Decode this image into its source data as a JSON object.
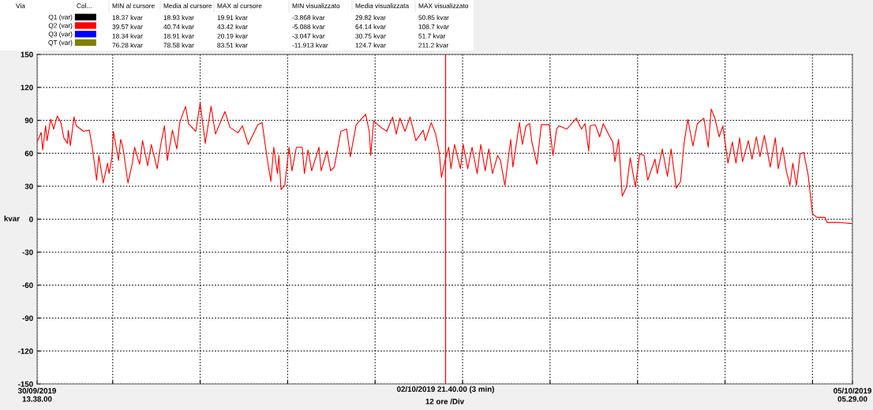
{
  "chart_data": {
    "type": "line",
    "xlabel": "12 ore /Div",
    "ylabel": "kvar",
    "annotations": [
      "Via",
      "Col...",
      "MIN al cursore",
      "Media al cursore",
      "MAX al cursore",
      "MIN visualizzato",
      "Media visualizzata",
      "MAX visualizzato",
      "18.37 kvar",
      "18.93 kvar",
      "19.91 kvar",
      "-3.868 kvar",
      "29.82 kvar",
      "50.85 kvar",
      "39.57 kvar",
      "40.74 kvar",
      "43.42 kvar",
      "-5.088 kvar",
      "64.14 kvar",
      "108.7 kvar",
      "18.34 kvar",
      "18.91 kvar",
      "20.19 kvar",
      "-3.047 kvar",
      "30.75 kvar",
      "51.7 kvar",
      "76.28 kvar",
      "78.58 kvar",
      "83.51 kvar",
      "-11.913 kvar",
      "124.7 kvar",
      "211.2 kvar"
    ],
    "legend": "top",
    "grid": true,
    "line_style": "solid",
    "marker": "none",
    "xlim": [
      "2019-09-30T13:38",
      "2019-10-05T05:29"
    ],
    "ylim": [
      -150,
      150
    ],
    "xticks": [
      {
        "value": "2019-09-30T13:38",
        "label": "30/09/2019\n13.38.00"
      },
      {
        "value": "2019-10-01T00:00",
        "label": null
      },
      {
        "value": "2019-10-01T12:00",
        "label": null
      },
      {
        "value": "2019-10-02T00:00",
        "label": null
      },
      {
        "value": "2019-10-02T12:00",
        "label": null
      },
      {
        "value": "2019-10-03T00:00",
        "label": null
      },
      {
        "value": "2019-10-03T12:00",
        "label": null
      },
      {
        "value": "2019-10-04T00:00",
        "label": null
      },
      {
        "value": "2019-10-04T12:00",
        "label": null
      },
      {
        "value": "2019-10-05T00:00",
        "label": null
      },
      {
        "value": "2019-10-05T05:29",
        "label": "05/10/2019\n05.29.00"
      }
    ],
    "yticks": [
      -150,
      -120,
      -90,
      -60,
      -30,
      0,
      30,
      60,
      90,
      120,
      150
    ],
    "ref_lines": [
      {
        "axis": "x",
        "value": "2019-10-02T21:40",
        "label": "02/10/2019 21.40.00 (3 min)",
        "color": "#ff0000"
      }
    ],
    "series": [
      {
        "name": "Q1 (var)",
        "color": "#000000"
      },
      {
        "name": "Q2 (var)",
        "color": "#ff0000",
        "x": [
          "2019-09-30T13:38",
          "2019-09-30T14:12",
          "2019-09-30T14:24",
          "2019-09-30T14:48",
          "2019-09-30T15:00",
          "2019-09-30T15:30",
          "2019-09-30T15:54",
          "2019-09-30T16:24",
          "2019-09-30T16:54",
          "2019-09-30T17:18",
          "2019-09-30T17:48",
          "2019-09-30T17:54",
          "2019-09-30T18:12",
          "2019-09-30T18:42",
          "2019-09-30T19:00",
          "2019-09-30T20:00",
          "2019-09-30T20:48",
          "2019-09-30T21:12",
          "2019-09-30T21:48",
          "2019-09-30T22:06",
          "2019-09-30T22:42",
          "2019-09-30T23:18",
          "2019-09-30T23:30",
          "2019-09-30T23:54",
          "2019-10-01T00:06",
          "2019-10-01T00:48",
          "2019-10-01T01:06",
          "2019-10-01T01:24",
          "2019-10-01T02:06",
          "2019-10-01T02:42",
          "2019-10-01T03:00",
          "2019-10-01T03:42",
          "2019-10-01T04:06",
          "2019-10-01T04:48",
          "2019-10-01T05:18",
          "2019-10-01T06:06",
          "2019-10-01T06:36",
          "2019-10-01T07:06",
          "2019-10-01T07:30",
          "2019-10-01T08:12",
          "2019-10-01T08:48",
          "2019-10-01T09:12",
          "2019-10-01T10:00",
          "2019-10-01T10:24",
          "2019-10-01T11:24",
          "2019-10-01T12:00",
          "2019-10-01T12:42",
          "2019-10-01T13:30",
          "2019-10-01T14:06",
          "2019-10-01T15:24",
          "2019-10-01T16:06",
          "2019-10-01T17:12",
          "2019-10-01T17:48",
          "2019-10-01T18:36",
          "2019-10-01T19:54",
          "2019-10-01T20:30",
          "2019-10-01T21:12",
          "2019-10-01T21:42",
          "2019-10-01T22:06",
          "2019-10-01T22:36",
          "2019-10-01T22:48",
          "2019-10-01T23:06",
          "2019-10-01T23:36",
          "2019-10-02T00:12",
          "2019-10-02T00:36",
          "2019-10-02T01:12",
          "2019-10-02T02:00",
          "2019-10-02T02:18",
          "2019-10-02T02:48",
          "2019-10-02T03:18",
          "2019-10-02T04:18",
          "2019-10-02T04:36",
          "2019-10-02T05:24",
          "2019-10-02T05:54",
          "2019-10-02T06:24",
          "2019-10-02T07:18",
          "2019-10-02T08:06",
          "2019-10-02T08:36",
          "2019-10-02T09:24",
          "2019-10-02T10:42",
          "2019-10-02T11:12",
          "2019-10-02T11:24",
          "2019-10-02T11:48",
          "2019-10-02T12:48",
          "2019-10-02T13:36",
          "2019-10-02T14:24",
          "2019-10-02T14:54",
          "2019-10-02T15:24",
          "2019-10-02T16:06",
          "2019-10-02T16:48",
          "2019-10-02T17:36",
          "2019-10-02T18:36",
          "2019-10-02T18:54",
          "2019-10-02T19:42",
          "2019-10-02T20:18",
          "2019-10-02T20:48",
          "2019-10-02T21:06",
          "2019-10-02T21:36",
          "2019-10-02T22:06",
          "2019-10-02T22:24",
          "2019-10-02T22:54",
          "2019-10-02T23:42",
          "2019-10-03T00:06",
          "2019-10-03T00:42",
          "2019-10-03T01:18",
          "2019-10-03T02:00",
          "2019-10-03T02:30",
          "2019-10-03T03:06",
          "2019-10-03T03:36",
          "2019-10-03T04:06",
          "2019-10-03T04:48",
          "2019-10-03T05:12",
          "2019-10-03T05:48",
          "2019-10-03T06:36",
          "2019-10-03T06:54",
          "2019-10-03T07:12",
          "2019-10-03T07:48",
          "2019-10-03T08:12",
          "2019-10-03T08:42",
          "2019-10-03T09:12",
          "2019-10-03T09:30",
          "2019-10-03T10:12",
          "2019-10-03T10:48",
          "2019-10-03T11:54",
          "2019-10-03T12:24",
          "2019-10-03T12:54",
          "2019-10-03T13:12",
          "2019-10-03T14:18",
          "2019-10-03T15:36",
          "2019-10-03T16:18",
          "2019-10-03T16:48",
          "2019-10-03T17:18",
          "2019-10-03T17:30",
          "2019-10-03T18:12",
          "2019-10-03T18:48",
          "2019-10-03T19:18",
          "2019-10-03T20:00",
          "2019-10-03T20:36",
          "2019-10-03T20:54",
          "2019-10-03T21:24",
          "2019-10-03T21:54",
          "2019-10-03T22:30",
          "2019-10-03T23:00",
          "2019-10-03T23:42",
          "2019-10-04T00:18",
          "2019-10-04T00:54",
          "2019-10-04T01:24",
          "2019-10-04T02:24",
          "2019-10-04T02:42",
          "2019-10-04T03:24",
          "2019-10-04T04:06",
          "2019-10-04T04:36",
          "2019-10-04T05:18",
          "2019-10-04T05:54",
          "2019-10-04T06:24",
          "2019-10-04T06:54",
          "2019-10-04T07:36",
          "2019-10-04T08:12",
          "2019-10-04T09:06",
          "2019-10-04T09:42",
          "2019-10-04T10:06",
          "2019-10-04T10:36",
          "2019-10-04T11:12",
          "2019-10-04T11:42",
          "2019-10-04T12:24",
          "2019-10-04T13:00",
          "2019-10-04T13:30",
          "2019-10-04T14:00",
          "2019-10-04T14:24",
          "2019-10-04T15:12",
          "2019-10-04T15:42",
          "2019-10-04T16:18",
          "2019-10-04T16:48",
          "2019-10-04T17:24",
          "2019-10-04T18:12",
          "2019-10-04T18:54",
          "2019-10-04T19:18",
          "2019-10-04T19:54",
          "2019-10-04T20:24",
          "2019-10-04T20:54",
          "2019-10-04T21:18",
          "2019-10-04T21:48",
          "2019-10-04T22:18",
          "2019-10-04T22:48",
          "2019-10-04T23:24",
          "2019-10-04T23:42",
          "2019-10-05T00:00",
          "2019-10-05T00:36",
          "2019-10-05T01:42",
          "2019-10-05T02:00",
          "2019-10-05T03:48",
          "2019-10-05T05:24"
        ],
        "values": [
          70.3,
          79,
          63,
          85,
          71.5,
          91,
          82,
          94,
          88,
          74,
          69,
          81,
          67,
          93,
          85,
          80,
          81,
          65.5,
          35.5,
          58,
          33,
          51,
          41.5,
          56,
          80,
          53.5,
          72.7,
          65.5,
          33,
          51,
          65.5,
          50,
          71.5,
          48.7,
          68,
          46,
          68,
          85,
          53.5,
          81,
          64,
          88,
          102.7,
          87,
          80,
          106,
          69,
          102.7,
          77.5,
          98,
          83.5,
          78.7,
          85,
          68,
          86,
          88,
          54.7,
          34.3,
          65.5,
          41.5,
          58,
          27,
          30.7,
          65.5,
          44,
          65.5,
          65.5,
          41.5,
          63,
          44,
          65.5,
          44,
          62,
          44,
          47.5,
          80,
          82,
          57,
          86,
          95.5,
          80,
          58,
          89.5,
          83.5,
          80,
          93,
          77.5,
          92,
          80,
          93,
          71.5,
          81,
          71.5,
          88,
          77.5,
          60.7,
          38,
          53.5,
          65.5,
          46,
          68,
          46,
          68,
          46,
          65.5,
          41.5,
          68,
          44,
          64,
          41.5,
          58,
          53.5,
          30.7,
          72.7,
          47.5,
          60.7,
          88,
          68,
          85,
          87,
          70.3,
          50,
          86,
          86,
          58,
          82,
          85,
          82,
          92,
          82,
          87,
          62,
          85,
          86,
          75,
          87,
          77.5,
          70.3,
          52.3,
          72.7,
          21,
          29.5,
          56,
          29.5,
          59.5,
          58,
          35.5,
          54.7,
          41.5,
          64,
          39,
          64,
          28.3,
          34.3,
          70.3,
          90.7,
          66.7,
          87,
          92,
          65.5,
          100.3,
          92,
          75,
          85,
          51,
          70.3,
          51,
          74,
          52.3,
          71.5,
          54.7,
          75,
          57,
          76.3,
          47.5,
          74,
          46,
          65.5,
          44,
          30.7,
          51,
          30.7,
          59.5,
          60.7,
          40.3,
          22.3,
          4.8,
          1.7,
          1.7,
          -3,
          -3,
          -4
        ]
      },
      {
        "name": "Q3 (var)",
        "color": "#0000ff"
      },
      {
        "name": "QT (var)",
        "color": "#808000"
      }
    ]
  }
}
